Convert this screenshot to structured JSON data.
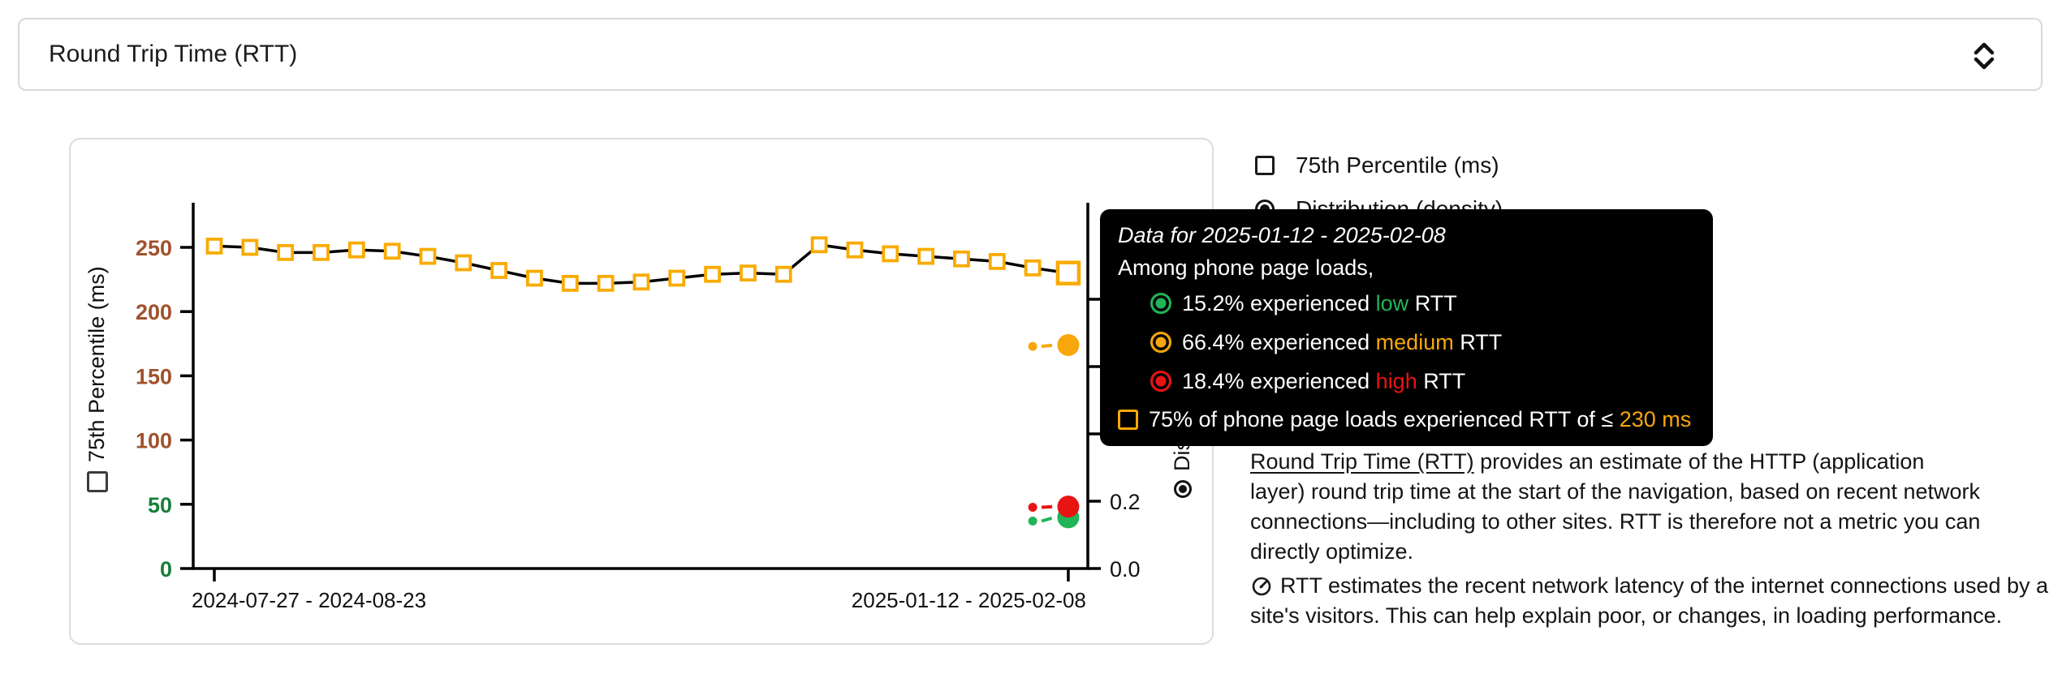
{
  "header": {
    "title": "Round Trip Time (RTT)"
  },
  "legend": {
    "percentile": "75th Percentile (ms)",
    "distribution": "Distribution (density)"
  },
  "tooltip": {
    "title": "Data for 2025-01-12 - 2025-02-08",
    "subtitle": "Among phone page loads,",
    "rows": [
      {
        "before": "15.2% experienced ",
        "key": "low",
        "after": " RTT"
      },
      {
        "before": "66.4% experienced ",
        "key": "medium",
        "after": " RTT"
      },
      {
        "before": "18.4% experienced ",
        "key": "high",
        "after": " RTT"
      }
    ],
    "p75_prefix": "75% of phone page loads experienced RTT of ≤ ",
    "p75_value": "230 ms"
  },
  "description": {
    "link": "Round Trip Time (RTT)",
    "p1_rest": " provides an estimate of the HTTP (application layer) round trip time at the start of the navigation, based on recent network connections—including to other sites. RTT is therefore not a metric you can directly optimize.",
    "p2": "RTT estimates the recent network latency of the internet connections used by a site's visitors. This can help explain poor, or changes, in loading performance."
  },
  "colors": {
    "low": "#22b458",
    "medium": "#f8a70b",
    "high": "#e81414",
    "marker_orange": "#f9ab00",
    "tick_good": "#188038",
    "tick_medium": "#a0522d",
    "axis_black": "#000000"
  },
  "chart_data": {
    "type": "line",
    "title": "Round Trip Time (RTT)",
    "x_tick_labels": [
      "2024-07-27 - 2024-08-23",
      "2025-01-12 - 2025-02-08"
    ],
    "num_periods": 25,
    "highlight_index": 24,
    "percentile_series": {
      "name": "75th Percentile (ms)",
      "color": "#f9ab00",
      "marker": "square",
      "values": [
        251,
        250,
        246,
        246,
        248,
        247,
        243,
        238,
        232,
        226,
        222,
        222,
        223,
        226,
        229,
        230,
        229,
        252,
        248,
        245,
        243,
        241,
        239,
        234,
        230
      ]
    },
    "density_series": [
      {
        "name": "low",
        "color": "#22b458",
        "x_indices": [
          23,
          24
        ],
        "values": [
          0.141,
          0.152
        ]
      },
      {
        "name": "medium",
        "color": "#f8a70b",
        "x_indices": [
          23,
          24
        ],
        "values": [
          0.66,
          0.664
        ]
      },
      {
        "name": "high",
        "color": "#e81414",
        "x_indices": [
          23,
          24
        ],
        "values": [
          0.182,
          0.184
        ]
      }
    ],
    "left_axis": {
      "label": "75th Percentile (ms)",
      "ticks": [
        0,
        50,
        100,
        150,
        200,
        250
      ],
      "range": [
        0,
        285
      ]
    },
    "right_axis": {
      "label": "Distribution (density)",
      "ticks": [
        0.0,
        0.2,
        0.4,
        0.6,
        0.8
      ],
      "range": [
        0,
        1.08
      ]
    },
    "hovered_point": {
      "period": "2025-01-12 - 2025-02-08",
      "p75_ms": 230,
      "pct_low": 15.2,
      "pct_medium": 66.4,
      "pct_high": 18.4
    }
  }
}
